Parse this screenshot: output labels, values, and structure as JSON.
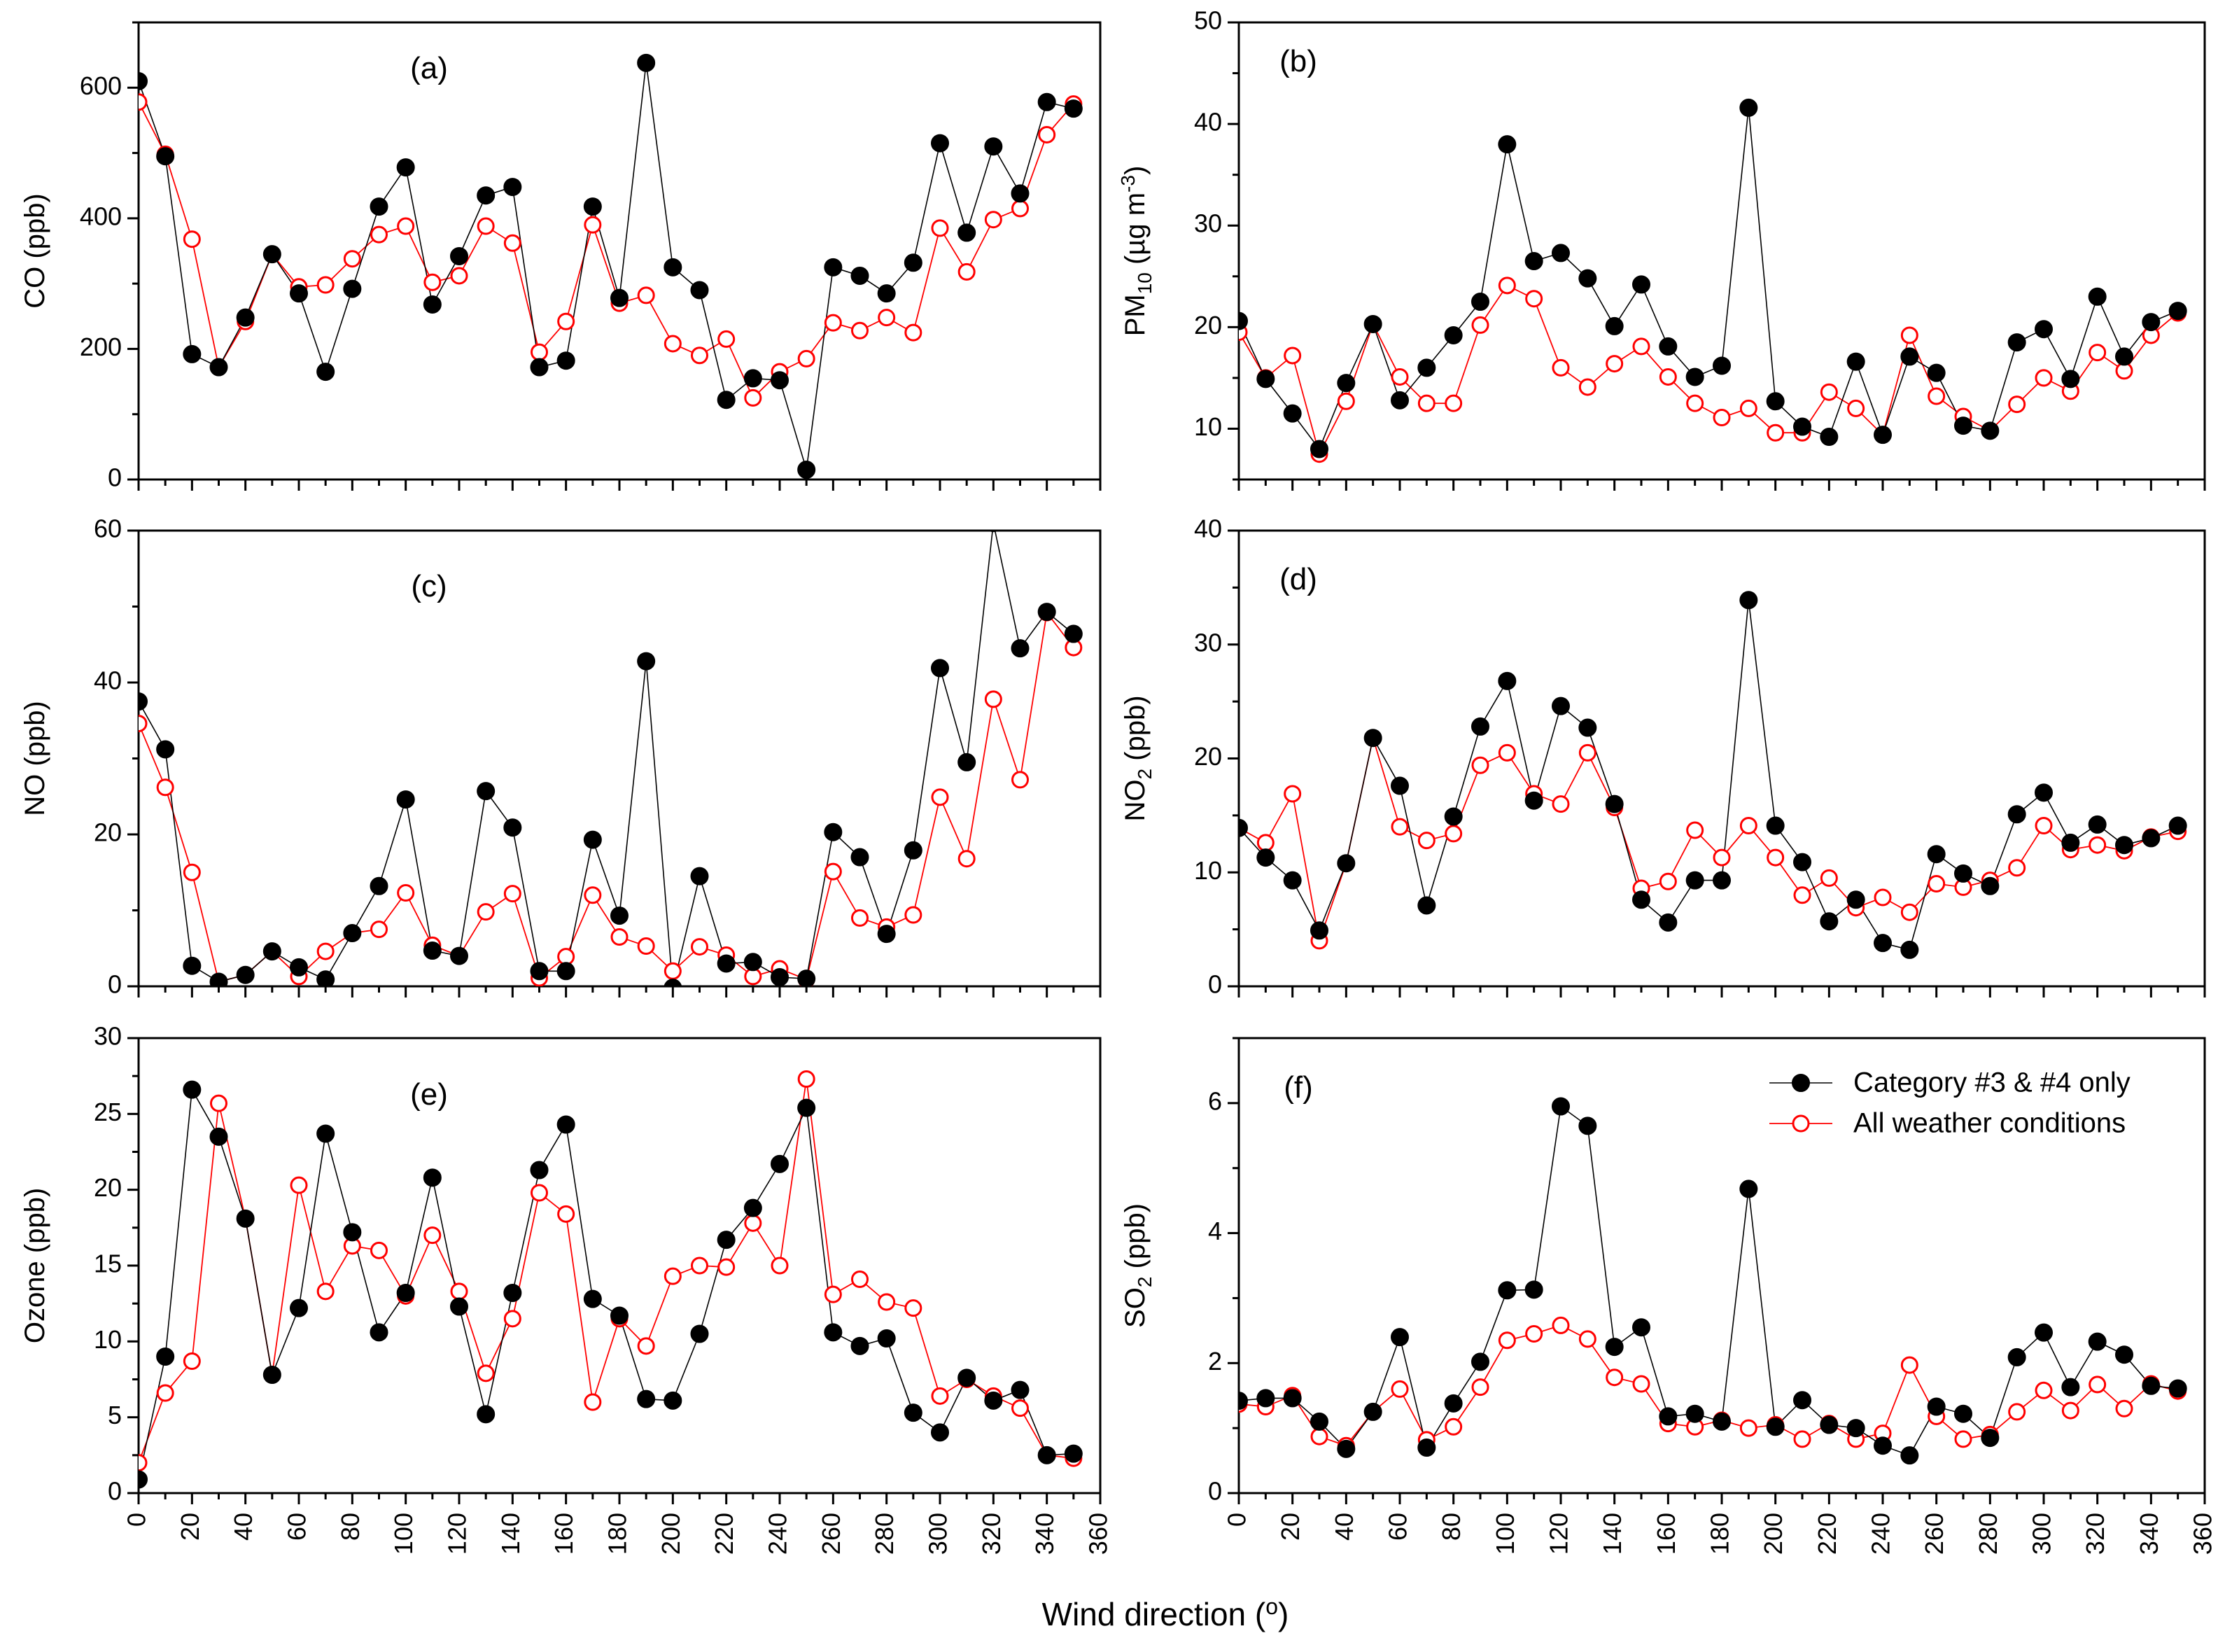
{
  "colors": {
    "category": "#000000",
    "all_weather": "#ff0000",
    "open_marker_fill": "#ffffff"
  },
  "legend": {
    "category_label": "Category #3 & #4 only",
    "all_label": "All weather conditions"
  },
  "xlabel": "Wind direction (o)",
  "chart_data": [
    {
      "type": "line",
      "panel": "(a)",
      "ylabel": "CO (ppb)",
      "x": [
        0,
        10,
        20,
        30,
        40,
        50,
        60,
        70,
        80,
        90,
        100,
        110,
        120,
        130,
        140,
        150,
        160,
        170,
        180,
        190,
        200,
        210,
        220,
        230,
        240,
        250,
        260,
        270,
        280,
        290,
        300,
        310,
        320,
        330,
        340,
        350
      ],
      "xlim": [
        0,
        360
      ],
      "ylim": [
        0,
        700
      ],
      "xticks": [
        0,
        20,
        40,
        60,
        80,
        100,
        120,
        140,
        160,
        180,
        200,
        220,
        240,
        260,
        280,
        300,
        320,
        340,
        360
      ],
      "yticks": [
        0,
        200,
        400,
        600
      ],
      "series": [
        {
          "name": "Category #3 & #4 only",
          "values": [
            610,
            495,
            192,
            172,
            248,
            345,
            285,
            165,
            292,
            418,
            478,
            268,
            342,
            435,
            448,
            172,
            182,
            418,
            278,
            638,
            325,
            290,
            122,
            155,
            152,
            15,
            325,
            312,
            285,
            332,
            515,
            378,
            510,
            438,
            578,
            568
          ]
        },
        {
          "name": "All weather conditions",
          "values": [
            578,
            498,
            368,
            172,
            242,
            345,
            295,
            298,
            338,
            375,
            388,
            302,
            312,
            388,
            362,
            195,
            242,
            390,
            270,
            282,
            208,
            190,
            215,
            125,
            165,
            185,
            240,
            228,
            248,
            225,
            385,
            318,
            398,
            415,
            528,
            575
          ]
        }
      ]
    },
    {
      "type": "line",
      "panel": "(b)",
      "ylabel": "PM10 (µg m-3)",
      "ylabel_main": "PM",
      "ylabel_sub": "10",
      "ylabel_mid": " (µg m",
      "ylabel_sup": "-3",
      "ylabel_end": ")",
      "x": [
        0,
        10,
        20,
        30,
        40,
        50,
        60,
        70,
        80,
        90,
        100,
        110,
        120,
        130,
        140,
        150,
        160,
        170,
        180,
        190,
        200,
        210,
        220,
        230,
        240,
        250,
        260,
        270,
        280,
        290,
        300,
        310,
        320,
        330,
        340,
        350
      ],
      "xlim": [
        0,
        360
      ],
      "ylim": [
        5,
        50
      ],
      "xticks": [
        0,
        20,
        40,
        60,
        80,
        100,
        120,
        140,
        160,
        180,
        200,
        220,
        240,
        260,
        280,
        300,
        320,
        340,
        360
      ],
      "yticks": [
        10,
        20,
        30,
        40,
        50
      ],
      "series": [
        {
          "name": "Category #3 & #4 only",
          "values": [
            20.6,
            14.9,
            11.5,
            8.0,
            14.5,
            20.3,
            12.8,
            16.0,
            19.2,
            22.5,
            38.0,
            26.5,
            27.3,
            24.8,
            20.1,
            24.2,
            18.1,
            15.1,
            16.2,
            41.6,
            12.7,
            10.2,
            9.2,
            16.6,
            9.4,
            17.1,
            15.5,
            10.3,
            9.8,
            18.5,
            19.8,
            14.9,
            23.0,
            17.1,
            20.5,
            21.6
          ]
        },
        {
          "name": "All weather conditions",
          "values": [
            19.5,
            15.0,
            17.2,
            7.5,
            12.7,
            20.3,
            15.1,
            12.5,
            12.5,
            20.2,
            24.1,
            22.8,
            16.0,
            14.1,
            16.4,
            18.1,
            15.1,
            12.5,
            11.1,
            12.0,
            9.6,
            9.6,
            13.6,
            12.0,
            9.4,
            19.2,
            13.2,
            11.2,
            9.8,
            12.4,
            15.0,
            13.7,
            17.5,
            15.7,
            19.2,
            21.4
          ]
        }
      ]
    },
    {
      "type": "line",
      "panel": "(c)",
      "ylabel": "NO (ppb)",
      "x": [
        0,
        10,
        20,
        30,
        40,
        50,
        60,
        70,
        80,
        90,
        100,
        110,
        120,
        130,
        140,
        150,
        160,
        170,
        180,
        190,
        200,
        210,
        220,
        230,
        240,
        250,
        260,
        270,
        280,
        290,
        300,
        310,
        320,
        330,
        340,
        350
      ],
      "xlim": [
        0,
        360
      ],
      "ylim": [
        0,
        60
      ],
      "xticks": [
        0,
        20,
        40,
        60,
        80,
        100,
        120,
        140,
        160,
        180,
        200,
        220,
        240,
        260,
        280,
        300,
        320,
        340,
        360
      ],
      "yticks": [
        0,
        20,
        40,
        60
      ],
      "series": [
        {
          "name": "Category #3 & #4 only",
          "values": [
            37.5,
            31.2,
            2.7,
            0.6,
            1.5,
            4.6,
            2.5,
            0.9,
            7.0,
            13.2,
            24.6,
            4.7,
            4.0,
            25.7,
            20.9,
            2.0,
            2.0,
            19.3,
            9.3,
            42.8,
            -0.2,
            14.5,
            3.0,
            3.2,
            1.2,
            1.0,
            20.3,
            17.0,
            6.9,
            17.9,
            41.9,
            29.5,
            61.0,
            44.5,
            49.3,
            46.4
          ]
        },
        {
          "name": "All weather conditions",
          "values": [
            34.6,
            26.2,
            15.0,
            0.6,
            1.5,
            4.6,
            1.3,
            4.6,
            7.0,
            7.5,
            12.3,
            5.4,
            4.0,
            9.8,
            12.2,
            1.1,
            3.9,
            12.0,
            6.5,
            5.3,
            2.0,
            5.2,
            4.1,
            1.3,
            2.3,
            0.9,
            15.1,
            9.0,
            7.8,
            9.4,
            24.9,
            16.8,
            37.8,
            27.2,
            49.2,
            44.6
          ]
        }
      ]
    },
    {
      "type": "line",
      "panel": "(d)",
      "ylabel": "NO2 (ppb)",
      "ylabel_main": "NO",
      "ylabel_sub": "2",
      "ylabel_end": " (ppb)",
      "x": [
        0,
        10,
        20,
        30,
        40,
        50,
        60,
        70,
        80,
        90,
        100,
        110,
        120,
        130,
        140,
        150,
        160,
        170,
        180,
        190,
        200,
        210,
        220,
        230,
        240,
        250,
        260,
        270,
        280,
        290,
        300,
        310,
        320,
        330,
        340,
        350
      ],
      "xlim": [
        0,
        360
      ],
      "ylim": [
        0,
        40
      ],
      "xticks": [
        0,
        20,
        40,
        60,
        80,
        100,
        120,
        140,
        160,
        180,
        200,
        220,
        240,
        260,
        280,
        300,
        320,
        340,
        360
      ],
      "yticks": [
        0,
        10,
        20,
        30,
        40
      ],
      "series": [
        {
          "name": "Category #3 & #4 only",
          "values": [
            13.9,
            11.3,
            9.3,
            4.9,
            10.8,
            21.8,
            17.6,
            7.1,
            14.9,
            22.8,
            26.8,
            16.3,
            24.6,
            22.7,
            16.0,
            7.6,
            5.6,
            9.3,
            9.3,
            33.9,
            14.1,
            10.9,
            5.7,
            7.6,
            3.8,
            3.2,
            11.6,
            9.9,
            8.8,
            15.1,
            17.0,
            12.6,
            14.2,
            12.4,
            13.0,
            14.1
          ]
        },
        {
          "name": "All weather conditions",
          "values": [
            13.9,
            12.6,
            16.9,
            4.0,
            10.8,
            21.8,
            14.0,
            12.8,
            13.4,
            19.4,
            20.5,
            16.9,
            16.0,
            20.5,
            15.7,
            8.6,
            9.2,
            13.7,
            11.3,
            14.1,
            11.3,
            8.0,
            9.5,
            6.9,
            7.8,
            6.5,
            9.0,
            8.7,
            9.3,
            10.4,
            14.1,
            12.0,
            12.4,
            11.9,
            13.1,
            13.6
          ]
        }
      ]
    },
    {
      "type": "line",
      "panel": "(e)",
      "ylabel": "Ozone (ppb)",
      "x": [
        0,
        10,
        20,
        30,
        40,
        50,
        60,
        70,
        80,
        90,
        100,
        110,
        120,
        130,
        140,
        150,
        160,
        170,
        180,
        190,
        200,
        210,
        220,
        230,
        240,
        250,
        260,
        270,
        280,
        290,
        300,
        310,
        320,
        330,
        340,
        350
      ],
      "xlim": [
        0,
        360
      ],
      "ylim": [
        0,
        30
      ],
      "xticks": [
        0,
        20,
        40,
        60,
        80,
        100,
        120,
        140,
        160,
        180,
        200,
        220,
        240,
        260,
        280,
        300,
        320,
        340,
        360
      ],
      "yticks": [
        0,
        5,
        10,
        15,
        20,
        25,
        30
      ],
      "series": [
        {
          "name": "Category #3 & #4 only",
          "values": [
            0.9,
            9.0,
            26.6,
            23.5,
            18.1,
            7.8,
            12.2,
            23.7,
            17.2,
            10.6,
            13.2,
            20.8,
            12.3,
            5.2,
            13.2,
            21.3,
            24.3,
            12.8,
            11.7,
            6.2,
            6.1,
            10.5,
            16.7,
            18.8,
            21.7,
            25.4,
            10.6,
            9.7,
            10.2,
            5.3,
            4.0,
            7.6,
            6.1,
            6.8,
            2.5,
            2.6
          ]
        },
        {
          "name": "All weather conditions",
          "values": [
            2.0,
            6.6,
            8.7,
            25.7,
            18.1,
            7.8,
            20.3,
            13.3,
            16.3,
            16.0,
            13.0,
            17.0,
            13.3,
            7.9,
            11.5,
            19.8,
            18.4,
            6.0,
            11.5,
            9.7,
            14.3,
            15.0,
            14.9,
            17.8,
            15.0,
            27.3,
            13.1,
            14.1,
            12.6,
            12.2,
            6.4,
            7.5,
            6.4,
            5.6,
            2.5,
            2.3
          ]
        }
      ]
    },
    {
      "type": "line",
      "panel": "(f)",
      "ylabel": "SO2 (ppb)",
      "ylabel_main": "SO",
      "ylabel_sub": "2",
      "ylabel_end": " (ppb)",
      "x": [
        0,
        10,
        20,
        30,
        40,
        50,
        60,
        70,
        80,
        90,
        100,
        110,
        120,
        130,
        140,
        150,
        160,
        170,
        180,
        190,
        200,
        210,
        220,
        230,
        240,
        250,
        260,
        270,
        280,
        290,
        300,
        310,
        320,
        330,
        340,
        350
      ],
      "xlim": [
        0,
        360
      ],
      "ylim": [
        0,
        7
      ],
      "xticks": [
        0,
        20,
        40,
        60,
        80,
        100,
        120,
        140,
        160,
        180,
        200,
        220,
        240,
        260,
        280,
        300,
        320,
        340,
        360
      ],
      "yticks": [
        0,
        2,
        4,
        6
      ],
      "series": [
        {
          "name": "Category #3 & #4 only",
          "values": [
            1.42,
            1.46,
            1.46,
            1.1,
            0.68,
            1.25,
            2.4,
            0.7,
            1.38,
            2.02,
            3.12,
            3.13,
            5.95,
            5.65,
            2.25,
            2.55,
            1.18,
            1.22,
            1.1,
            4.68,
            1.02,
            1.43,
            1.05,
            1.0,
            0.73,
            0.58,
            1.33,
            1.22,
            0.85,
            2.09,
            2.47,
            1.63,
            2.33,
            2.13,
            1.65,
            1.61
          ]
        },
        {
          "name": "All weather conditions",
          "values": [
            1.37,
            1.33,
            1.5,
            0.87,
            0.73,
            1.25,
            1.6,
            0.82,
            1.02,
            1.63,
            2.35,
            2.45,
            2.58,
            2.37,
            1.78,
            1.68,
            1.07,
            1.02,
            1.12,
            1.0,
            1.05,
            0.83,
            1.07,
            0.83,
            0.92,
            1.97,
            1.18,
            0.83,
            0.9,
            1.25,
            1.58,
            1.27,
            1.67,
            1.3,
            1.68,
            1.57
          ]
        }
      ]
    }
  ]
}
